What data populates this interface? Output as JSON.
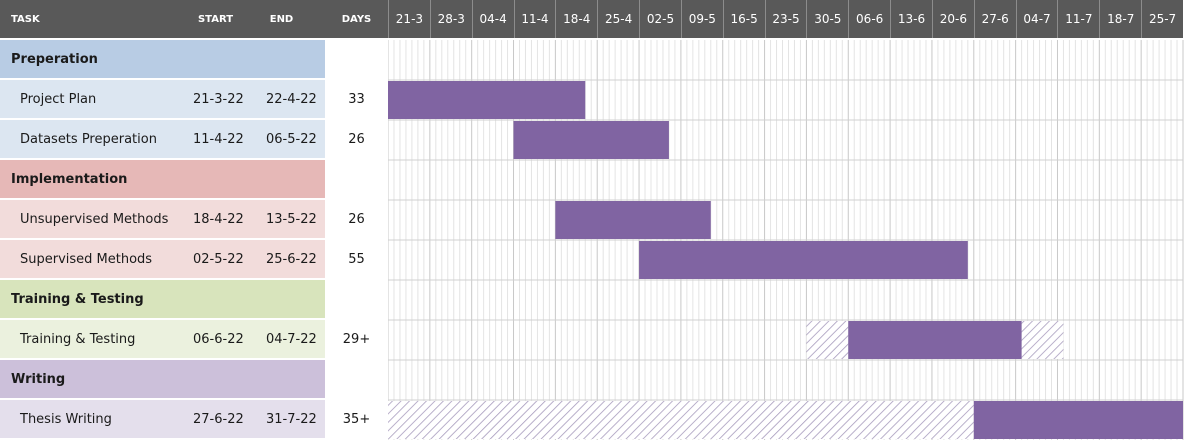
{
  "header": {
    "task": "TASK",
    "start": "START",
    "end": "END",
    "days": "DAYS",
    "weeks": [
      "21-3",
      "28-3",
      "04-4",
      "11-4",
      "18-4",
      "25-4",
      "02-5",
      "09-5",
      "16-5",
      "23-5",
      "30-5",
      "06-6",
      "13-6",
      "20-6",
      "27-6",
      "04-7",
      "11-7",
      "18-7",
      "25-7"
    ]
  },
  "colors": {
    "header_bg": "#595959",
    "bar": "#8064a2",
    "preparation_phase": "#b8cce4",
    "preparation_task": "#dce6f1",
    "implementation_phase": "#e6b8b7",
    "implementation_task": "#f2dcdb",
    "training_phase": "#d8e4bc",
    "training_task": "#ebf1de",
    "writing_phase": "#ccc0da",
    "writing_task": "#e4dfec"
  },
  "chart_data": {
    "type": "gantt",
    "x_axis_start": "2022-03-21",
    "x_axis_end": "2022-07-31",
    "tick_labels": [
      "21-3",
      "28-3",
      "04-4",
      "11-4",
      "18-4",
      "25-4",
      "02-5",
      "09-5",
      "16-5",
      "23-5",
      "30-5",
      "06-6",
      "13-6",
      "20-6",
      "27-6",
      "04-7",
      "11-7",
      "18-7",
      "25-7"
    ],
    "rows": [
      {
        "name": "Preperation",
        "type": "phase",
        "color": "#b8cce4"
      },
      {
        "name": "Project Plan",
        "type": "task",
        "color": "#dce6f1",
        "start": "21-3-22",
        "end": "22-4-22",
        "days": "33",
        "bar_start": "2022-03-21",
        "bar_end": "2022-04-23"
      },
      {
        "name": "Datasets Preperation",
        "type": "task",
        "color": "#dce6f1",
        "start": "11-4-22",
        "end": "06-5-22",
        "days": "26",
        "bar_start": "2022-04-11",
        "bar_end": "2022-05-07"
      },
      {
        "name": "Implementation",
        "type": "phase",
        "color": "#e6b8b7"
      },
      {
        "name": "Unsupervised Methods",
        "type": "task",
        "color": "#f2dcdb",
        "start": "18-4-22",
        "end": "13-5-22",
        "days": "26",
        "bar_start": "2022-04-18",
        "bar_end": "2022-05-14"
      },
      {
        "name": "Supervised Methods",
        "type": "task",
        "color": "#f2dcdb",
        "start": "02-5-22",
        "end": "25-6-22",
        "days": "55",
        "bar_start": "2022-05-02",
        "bar_end": "2022-06-26"
      },
      {
        "name": "Training & Testing",
        "type": "phase",
        "color": "#d8e4bc"
      },
      {
        "name": "Training & Testing",
        "type": "task",
        "color": "#ebf1de",
        "start": "06-6-22",
        "end": "04-7-22",
        "days": "29+",
        "bar_start": "2022-06-06",
        "bar_end": "2022-07-05",
        "hatch_before": [
          "2022-05-30",
          "2022-06-06"
        ],
        "hatch_after": [
          "2022-07-05",
          "2022-07-12"
        ]
      },
      {
        "name": "Writing",
        "type": "phase",
        "color": "#ccc0da"
      },
      {
        "name": "Thesis Writing",
        "type": "task",
        "color": "#e4dfec",
        "start": "27-6-22",
        "end": "31-7-22",
        "days": "35+",
        "bar_start": "2022-06-27",
        "bar_end": "2022-08-01",
        "hatch_before": [
          "2022-03-21",
          "2022-06-27"
        ]
      }
    ]
  }
}
